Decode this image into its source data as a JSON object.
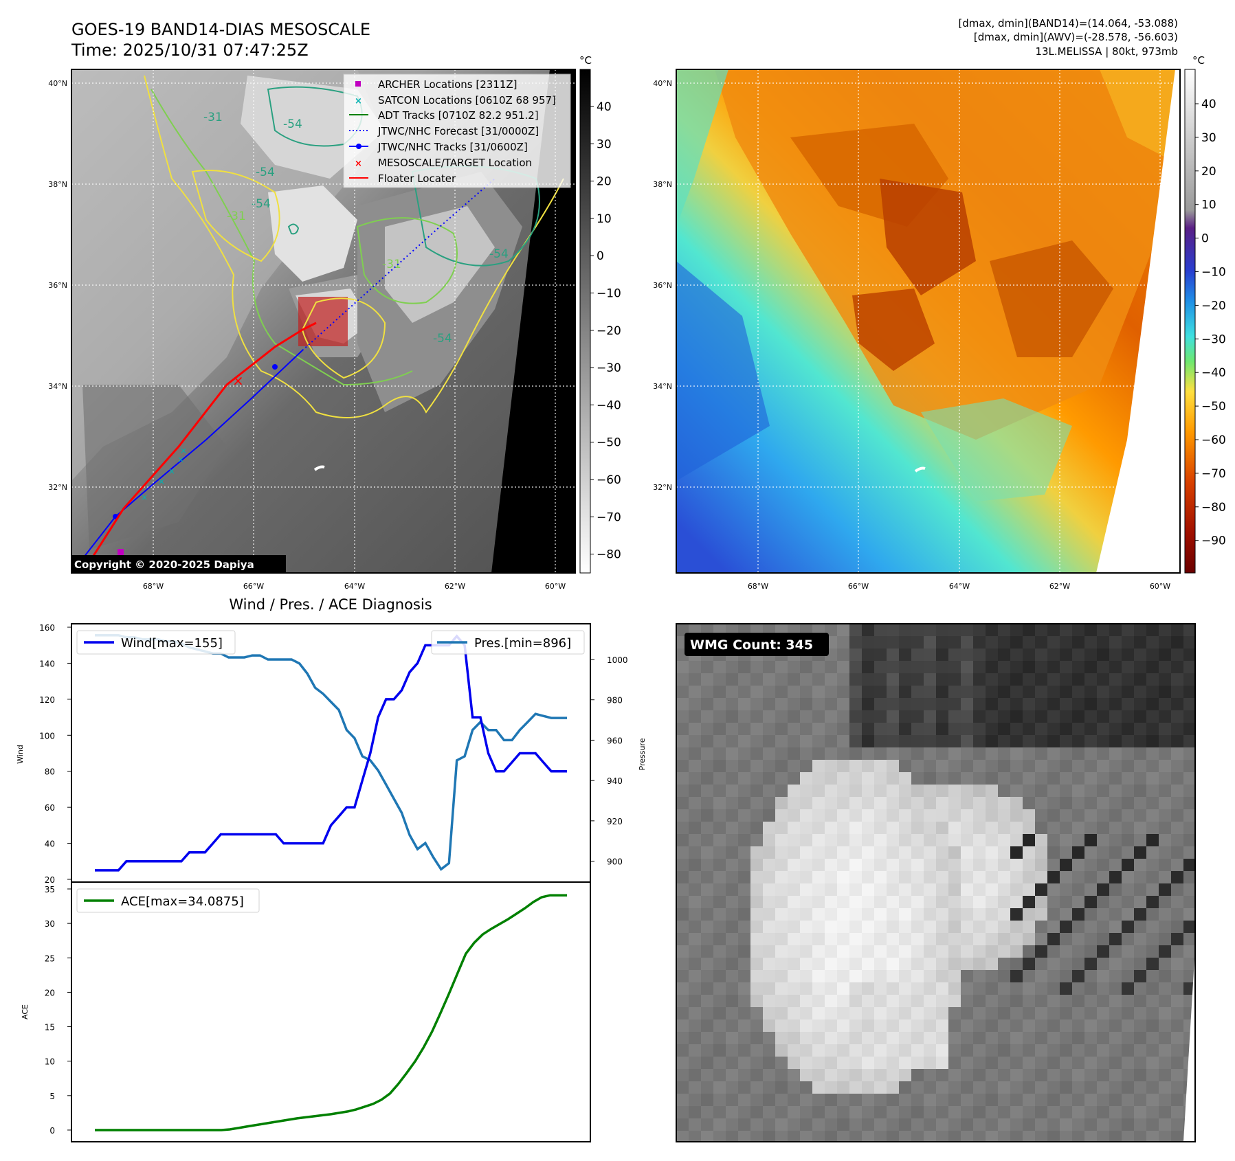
{
  "header": {
    "title_line1": "GOES-19 BAND14-DIAS MESOSCALE",
    "title_line2": "Time: 2025/10/31 07:47:25Z",
    "stats_line1": "[dmax, dmin](BAND14)=(14.064, -53.088)",
    "stats_line2": "[dmax, dmin](AWV)=(-28.578, -56.603)",
    "stats_line3": "13L.MELISSA | 80kt, 973mb"
  },
  "map": {
    "lat_labels": [
      "40°N",
      "38°N",
      "36°N",
      "34°N",
      "32°N"
    ],
    "lon_labels": [
      "68°W",
      "66°W",
      "64°W",
      "62°W",
      "60°W"
    ],
    "contour_labels": [
      "-31",
      "-54",
      "-54",
      "-54",
      "-31",
      "-54",
      "-31",
      "-54"
    ],
    "copyright": "Copyright © 2020-2025 Dapiya",
    "legend": [
      {
        "label": "ARCHER Locations [2311Z]",
        "symbol": "square",
        "color": "#c000c0"
      },
      {
        "label": "SATCON Locations [0610Z 68 957]",
        "symbol": "x",
        "color": "#00b0b0"
      },
      {
        "label": "ADT Tracks [0710Z 82.2 951.2]",
        "symbol": "line",
        "color": "#008000"
      },
      {
        "label": "JTWC/NHC Forecast [31/0000Z]",
        "symbol": "dotted",
        "color": "#0000ff"
      },
      {
        "label": "JTWC/NHC Tracks [31/0600Z]",
        "symbol": "line-dot",
        "color": "#0000ff"
      },
      {
        "label": "MESOSCALE/TARGET Location",
        "symbol": "x",
        "color": "#ff0000"
      },
      {
        "label": "Floater Locater",
        "symbol": "line",
        "color": "#ff0000"
      }
    ]
  },
  "colorbar_gray": {
    "unit": "°C",
    "ticks": [
      "40",
      "30",
      "20",
      "10",
      "0",
      "−10",
      "−20",
      "−30",
      "−40",
      "−50",
      "−60",
      "−70",
      "−80"
    ]
  },
  "colorbar_color": {
    "unit": "°C",
    "ticks": [
      "40",
      "30",
      "20",
      "10",
      "0",
      "−10",
      "−20",
      "−30",
      "−40",
      "−50",
      "−60",
      "−70",
      "−80",
      "−90"
    ]
  },
  "wmg": {
    "label": "WMG Count: 345"
  },
  "colors": {
    "wind": "#0000ee",
    "pressure": "#1f77b4",
    "ace": "#008000"
  },
  "chart_data": [
    {
      "type": "line",
      "title": "Wind / Pres. / ACE Diagnosis",
      "ylabel": "Wind",
      "ylabel_right": "Pressure",
      "ylim": [
        20,
        160
      ],
      "ylim_right": [
        891,
        1016
      ],
      "yticks": [
        20,
        40,
        60,
        80,
        100,
        120,
        140,
        160
      ],
      "yticks_right": [
        900,
        920,
        940,
        960,
        980,
        1000
      ],
      "x": [
        0,
        1,
        2,
        3,
        4,
        5,
        6,
        7,
        8,
        9,
        10,
        11,
        12,
        13,
        14,
        15,
        16,
        17,
        18,
        19,
        20,
        21,
        22,
        23,
        24,
        25,
        26,
        27,
        28,
        29,
        30,
        31,
        32,
        33,
        34,
        35,
        36,
        37,
        38,
        39,
        40,
        41,
        42,
        43,
        44,
        45,
        46,
        47,
        48,
        49,
        50,
        51,
        52,
        53,
        54,
        55,
        56,
        57,
        58,
        59,
        60
      ],
      "series": [
        {
          "name": "Wind",
          "legend": "Wind[max=155]",
          "axis": "left",
          "values": [
            25,
            25,
            25,
            25,
            30,
            30,
            30,
            30,
            30,
            30,
            30,
            30,
            35,
            35,
            35,
            40,
            45,
            45,
            45,
            45,
            45,
            45,
            45,
            45,
            40,
            40,
            40,
            40,
            40,
            40,
            50,
            55,
            60,
            60,
            75,
            90,
            110,
            120,
            120,
            125,
            135,
            140,
            150,
            150,
            150,
            150,
            155,
            150,
            110,
            110,
            90,
            80,
            80,
            85,
            90,
            90,
            90,
            85,
            80,
            80,
            80
          ]
        },
        {
          "name": "Pres.",
          "legend": "Pres.[min=896]",
          "axis": "right",
          "values": [
            1012,
            1012,
            1012,
            1012,
            1011,
            1011,
            1010,
            1010,
            1010,
            1009,
            1009,
            1008,
            1006,
            1005,
            1004,
            1003,
            1003,
            1001,
            1001,
            1001,
            1002,
            1002,
            1000,
            1000,
            1000,
            1000,
            998,
            993,
            986,
            983,
            979,
            975,
            965,
            961,
            952,
            950,
            945,
            938,
            931,
            924,
            913,
            906,
            909,
            902,
            896,
            899,
            950,
            952,
            965,
            969,
            965,
            965,
            960,
            960,
            965,
            969,
            973,
            972,
            971,
            971,
            971
          ]
        }
      ]
    },
    {
      "type": "line",
      "title": "",
      "ylabel": "ACE",
      "ylim": [
        -1.5,
        35
      ],
      "yticks": [
        0,
        5,
        10,
        15,
        20,
        25,
        30,
        35
      ],
      "x": [
        0,
        1,
        2,
        3,
        4,
        5,
        6,
        7,
        8,
        9,
        10,
        11,
        12,
        13,
        14,
        15,
        16,
        17,
        18,
        19,
        20,
        21,
        22,
        23,
        24,
        25,
        26,
        27,
        28,
        29,
        30,
        31,
        32,
        33,
        34,
        35,
        36,
        37,
        38,
        39,
        40,
        41,
        42,
        43,
        44,
        45,
        46,
        47,
        48,
        49,
        50,
        51,
        52,
        53,
        54,
        55,
        56
      ],
      "series": [
        {
          "name": "ACE",
          "legend": "ACE[max=34.0875]",
          "values": [
            0,
            0,
            0,
            0,
            0,
            0,
            0,
            0,
            0,
            0,
            0,
            0,
            0,
            0,
            0,
            0,
            0.1,
            0.3,
            0.5,
            0.7,
            0.9,
            1.1,
            1.3,
            1.5,
            1.7,
            1.85,
            2.0,
            2.15,
            2.3,
            2.5,
            2.7,
            3.0,
            3.4,
            3.8,
            4.4,
            5.3,
            6.7,
            8.3,
            10.0,
            12.0,
            14.3,
            17.0,
            19.8,
            22.7,
            25.6,
            27.2,
            28.4,
            29.2,
            29.9,
            30.6,
            31.4,
            32.2,
            33.1,
            33.8,
            34.0875,
            34.0875,
            34.0875
          ]
        }
      ]
    }
  ]
}
